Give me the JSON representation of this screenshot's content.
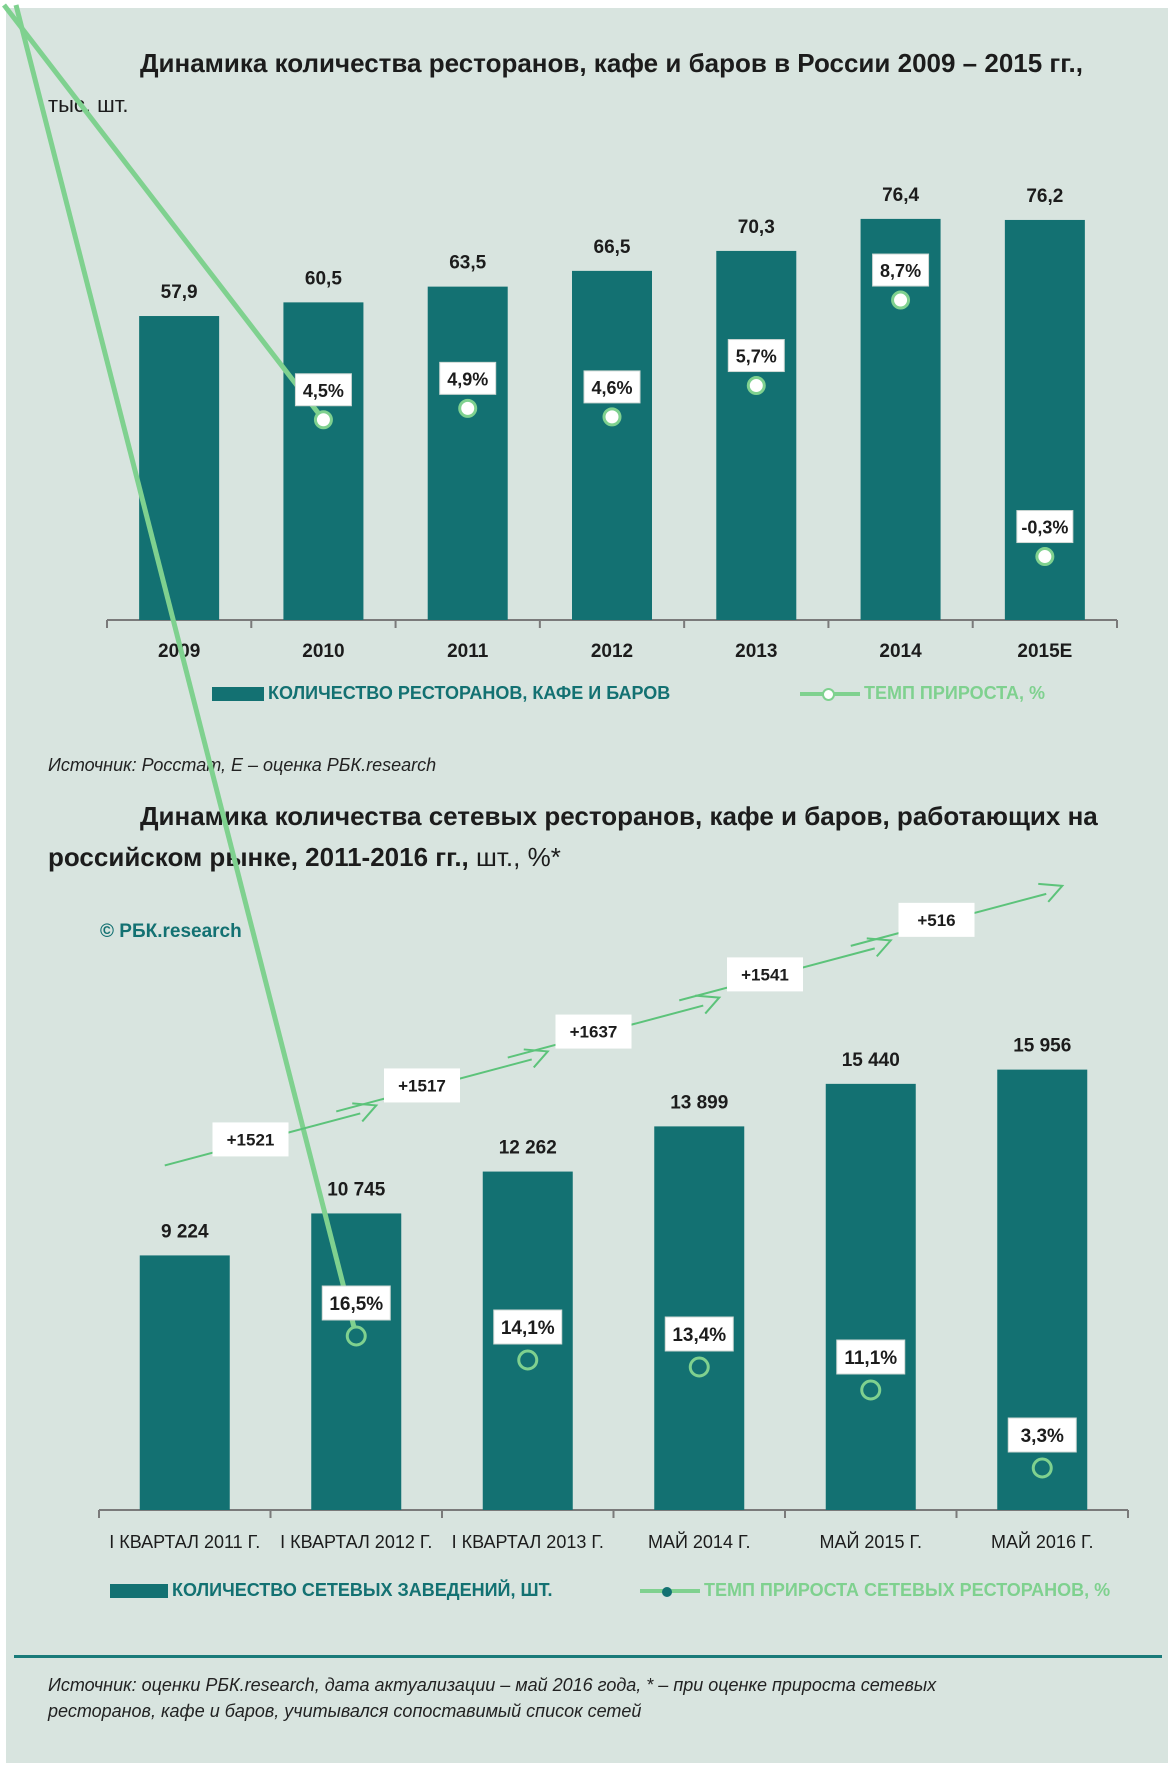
{
  "colors": {
    "bar": "#137172",
    "line": "#7fd18f",
    "arrow": "#5cc37a",
    "axis": "#7a7a7a",
    "text": "#1c1c1c"
  },
  "chart1": {
    "title_main": "Динамика количества ресторанов, кафе и баров в России 2009 – 2015 гг.,",
    "title_unit": "тыс. шт.",
    "source": "Источник: Росстат, Е – оценка РБК.research",
    "legend_bar": "КОЛИЧЕСТВО РЕСТОРАНОВ, КАФЕ И БАРОВ",
    "legend_line": "ТЕМП ПРИРОСТА, %"
  },
  "chart2": {
    "title_main_1": "Динамика количества сетевых ресторанов, кафе и баров, работающих на",
    "title_main_2": "российском рынке, 2011-2016 гг.,",
    "title_unit": "шт., %*",
    "watermark": "© РБК.research",
    "source_1": "Источник: оценки РБК.research, дата актуализации – май 2016 года, * – при оценке прироста сетевых",
    "source_2": "ресторанов, кафе и баров, учитывался сопоставимый список сетей",
    "legend_bar": "КОЛИЧЕСТВО СЕТЕВЫХ ЗАВЕДЕНИЙ, ШТ.",
    "legend_line": "ТЕМП ПРИРОСТА СЕТЕВЫХ РЕСТОРАНОВ, %"
  },
  "chart_data": [
    {
      "type": "bar",
      "title": "Динамика количества ресторанов, кафе и баров в России 2009 – 2015 гг., тыс. шт.",
      "categories": [
        "2009",
        "2010",
        "2011",
        "2012",
        "2013",
        "2014",
        "2015E"
      ],
      "series": [
        {
          "name": "КОЛИЧЕСТВО РЕСТОРАНОВ, КАФЕ И БАРОВ",
          "type": "bar",
          "values": [
            57.9,
            60.5,
            63.5,
            66.5,
            70.3,
            76.4,
            76.2
          ],
          "labels": [
            "57,9",
            "60,5",
            "63,5",
            "66,5",
            "70,3",
            "76,4",
            "76,2"
          ]
        },
        {
          "name": "ТЕМП ПРИРОСТА, %",
          "type": "line",
          "values": [
            null,
            4.5,
            4.9,
            4.6,
            5.7,
            8.7,
            -0.3
          ],
          "labels": [
            "",
            "4,5%",
            "4,9%",
            "4,6%",
            "5,7%",
            "8,7%",
            "-0,3%"
          ]
        }
      ],
      "legend": "bottom",
      "grid": false
    },
    {
      "type": "bar",
      "title": "Динамика количества сетевых ресторанов, кафе и баров, работающих на российском рынке, 2011-2016 гг., шт., %*",
      "categories": [
        "I КВАРТАЛ 2011 Г.",
        "I КВАРТАЛ 2012 Г.",
        "I КВАРТАЛ 2013 Г.",
        "МАЙ 2014 Г.",
        "МАЙ 2015 Г.",
        "МАЙ 2016 Г."
      ],
      "series": [
        {
          "name": "КОЛИЧЕСТВО СЕТЕВЫХ ЗАВЕДЕНИЙ, ШТ.",
          "type": "bar",
          "values": [
            9224,
            10745,
            12262,
            13899,
            15440,
            15956
          ],
          "labels": [
            "9 224",
            "10 745",
            "12 262",
            "13 899",
            "15 440",
            "15 956"
          ]
        },
        {
          "name": "ТЕМП ПРИРОСТА СЕТЕВЫХ РЕСТОРАНОВ, %",
          "type": "line",
          "values": [
            null,
            16.5,
            14.1,
            13.4,
            11.1,
            3.3
          ],
          "labels": [
            "",
            "16,5%",
            "14,1%",
            "13,4%",
            "11,1%",
            "3,3%"
          ]
        }
      ],
      "increments": [
        "+1521",
        "+1517",
        "+1637",
        "+1541",
        "+516"
      ],
      "legend": "bottom",
      "grid": false
    }
  ]
}
